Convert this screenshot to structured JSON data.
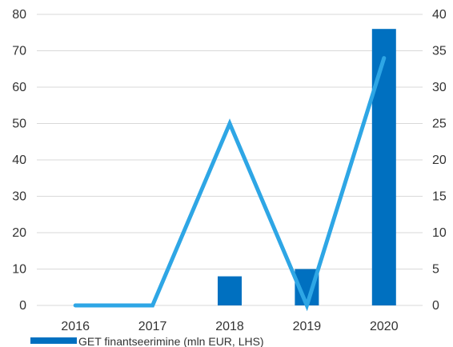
{
  "chart_data": {
    "type": "bar",
    "categories": [
      "2016",
      "2017",
      "2018",
      "2019",
      "2020"
    ],
    "series": [
      {
        "name": "GET finantseerimine (mln EUR, LHS)",
        "type": "bar",
        "axis": "left",
        "values": [
          0,
          0,
          8,
          10,
          76
        ],
        "color": "#0070c0"
      },
      {
        "type": "line",
        "axis": "right",
        "values": [
          0,
          0,
          25,
          0,
          34
        ],
        "color": "#2ea6e5"
      }
    ],
    "ylim_left": [
      0,
      80
    ],
    "yticks_left": [
      "0",
      "10",
      "20",
      "30",
      "40",
      "50",
      "60",
      "70",
      "80"
    ],
    "ylim_right": [
      0,
      40
    ],
    "yticks_right": [
      "0",
      "5",
      "10",
      "15",
      "20",
      "25",
      "30",
      "35",
      "40"
    ],
    "grid": true,
    "legend_position": "bottom-left"
  }
}
